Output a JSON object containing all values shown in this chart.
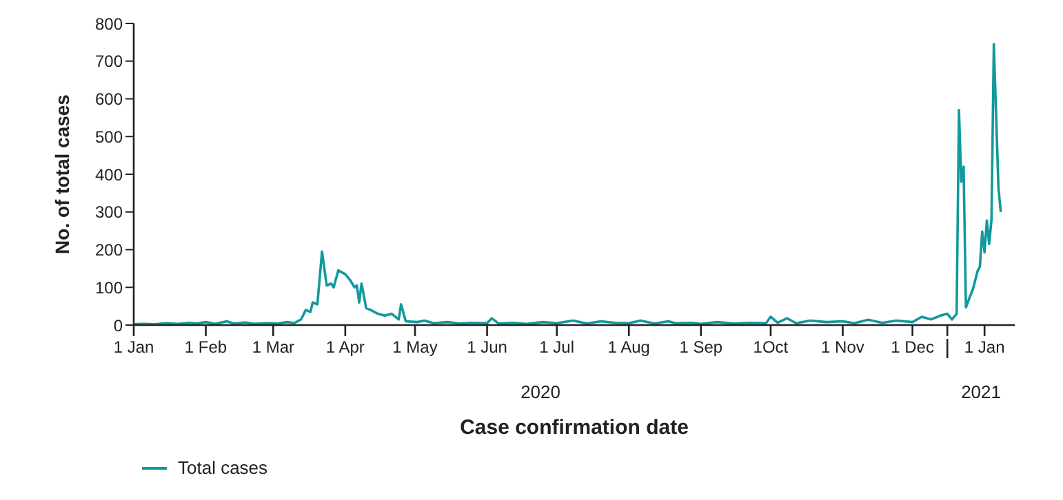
{
  "chart_data": {
    "type": "line",
    "xlabel": "Case confirmation date",
    "ylabel": "No. of total cases",
    "x": [
      "2020-01-01",
      "2020-01-05",
      "2020-01-10",
      "2020-01-15",
      "2020-01-20",
      "2020-01-25",
      "2020-01-28",
      "2020-02-01",
      "2020-02-05",
      "2020-02-10",
      "2020-02-13",
      "2020-02-18",
      "2020-02-22",
      "2020-02-27",
      "2020-03-03",
      "2020-03-07",
      "2020-03-10",
      "2020-03-13",
      "2020-03-15",
      "2020-03-17",
      "2020-03-18",
      "2020-03-20",
      "2020-03-22",
      "2020-03-24",
      "2020-03-26",
      "2020-03-27",
      "2020-03-29",
      "2020-04-01",
      "2020-04-03",
      "2020-04-05",
      "2020-04-06",
      "2020-04-07",
      "2020-04-08",
      "2020-04-10",
      "2020-04-12",
      "2020-04-15",
      "2020-04-18",
      "2020-04-21",
      "2020-04-23",
      "2020-04-24",
      "2020-04-25",
      "2020-04-27",
      "2020-05-02",
      "2020-05-05",
      "2020-05-09",
      "2020-05-15",
      "2020-05-20",
      "2020-05-25",
      "2020-06-01",
      "2020-06-03",
      "2020-06-06",
      "2020-06-12",
      "2020-06-18",
      "2020-06-25",
      "2020-07-01",
      "2020-07-08",
      "2020-07-14",
      "2020-07-20",
      "2020-07-26",
      "2020-08-01",
      "2020-08-06",
      "2020-08-12",
      "2020-08-18",
      "2020-08-21",
      "2020-08-28",
      "2020-09-01",
      "2020-09-08",
      "2020-09-15",
      "2020-09-22",
      "2020-09-29",
      "2020-10-01",
      "2020-10-04",
      "2020-10-08",
      "2020-10-12",
      "2020-10-18",
      "2020-10-25",
      "2020-11-01",
      "2020-11-06",
      "2020-11-12",
      "2020-11-18",
      "2020-11-24",
      "2020-12-01",
      "2020-12-05",
      "2020-12-09",
      "2020-12-13",
      "2020-12-16",
      "2020-12-18",
      "2020-12-20",
      "2020-12-21",
      "2020-12-22",
      "2020-12-23",
      "2020-12-24",
      "2020-12-26",
      "2020-12-27",
      "2020-12-29",
      "2020-12-30",
      "2020-12-31",
      "2021-01-01",
      "2021-01-02",
      "2021-01-03",
      "2021-01-04",
      "2021-01-05",
      "2021-01-07",
      "2021-01-08"
    ],
    "series": [
      {
        "name": "Total cases",
        "color": "#12999b",
        "values": [
          2,
          3,
          2,
          5,
          3,
          6,
          4,
          8,
          3,
          10,
          4,
          7,
          3,
          5,
          4,
          8,
          5,
          15,
          40,
          35,
          60,
          55,
          195,
          105,
          110,
          100,
          145,
          135,
          120,
          100,
          105,
          60,
          110,
          45,
          40,
          30,
          25,
          30,
          20,
          15,
          55,
          10,
          8,
          12,
          5,
          8,
          4,
          6,
          5,
          18,
          4,
          6,
          3,
          8,
          5,
          12,
          4,
          10,
          6,
          5,
          12,
          4,
          10,
          5,
          6,
          3,
          8,
          4,
          6,
          5,
          22,
          6,
          18,
          5,
          12,
          8,
          10,
          5,
          14,
          6,
          12,
          8,
          22,
          15,
          25,
          30,
          15,
          30,
          570,
          380,
          420,
          47,
          80,
          95,
          143,
          155,
          248,
          193,
          277,
          215,
          280,
          745,
          363,
          300
        ]
      }
    ],
    "xlim": [
      "2020-01-01",
      "2021-01-14"
    ],
    "xticks": [
      {
        "value": "2020-01-01",
        "label": "1 Jan"
      },
      {
        "value": "2020-02-01",
        "label": "1 Feb"
      },
      {
        "value": "2020-03-01",
        "label": "1 Mar"
      },
      {
        "value": "2020-04-01",
        "label": "1 Apr"
      },
      {
        "value": "2020-05-01",
        "label": "1 May"
      },
      {
        "value": "2020-06-01",
        "label": "1 Jun"
      },
      {
        "value": "2020-07-01",
        "label": "1 Jul"
      },
      {
        "value": "2020-08-01",
        "label": "1 Aug"
      },
      {
        "value": "2020-09-01",
        "label": "1 Sep"
      },
      {
        "value": "2020-10-01",
        "label": "1Oct"
      },
      {
        "value": "2020-11-01",
        "label": "1 Nov"
      },
      {
        "value": "2020-12-01",
        "label": "1 Dec"
      },
      {
        "value": "2020-12-16",
        "label": null
      },
      {
        "value": "2021-01-01",
        "label": "1 Jan"
      }
    ],
    "ylim": [
      0,
      800
    ],
    "yticks": [
      0,
      100,
      200,
      300,
      400,
      500,
      600,
      700,
      800
    ],
    "annotations": [
      "2020",
      "2021"
    ],
    "grid": false,
    "legend": "bottom left",
    "line_style": "solid",
    "marker": "none"
  }
}
